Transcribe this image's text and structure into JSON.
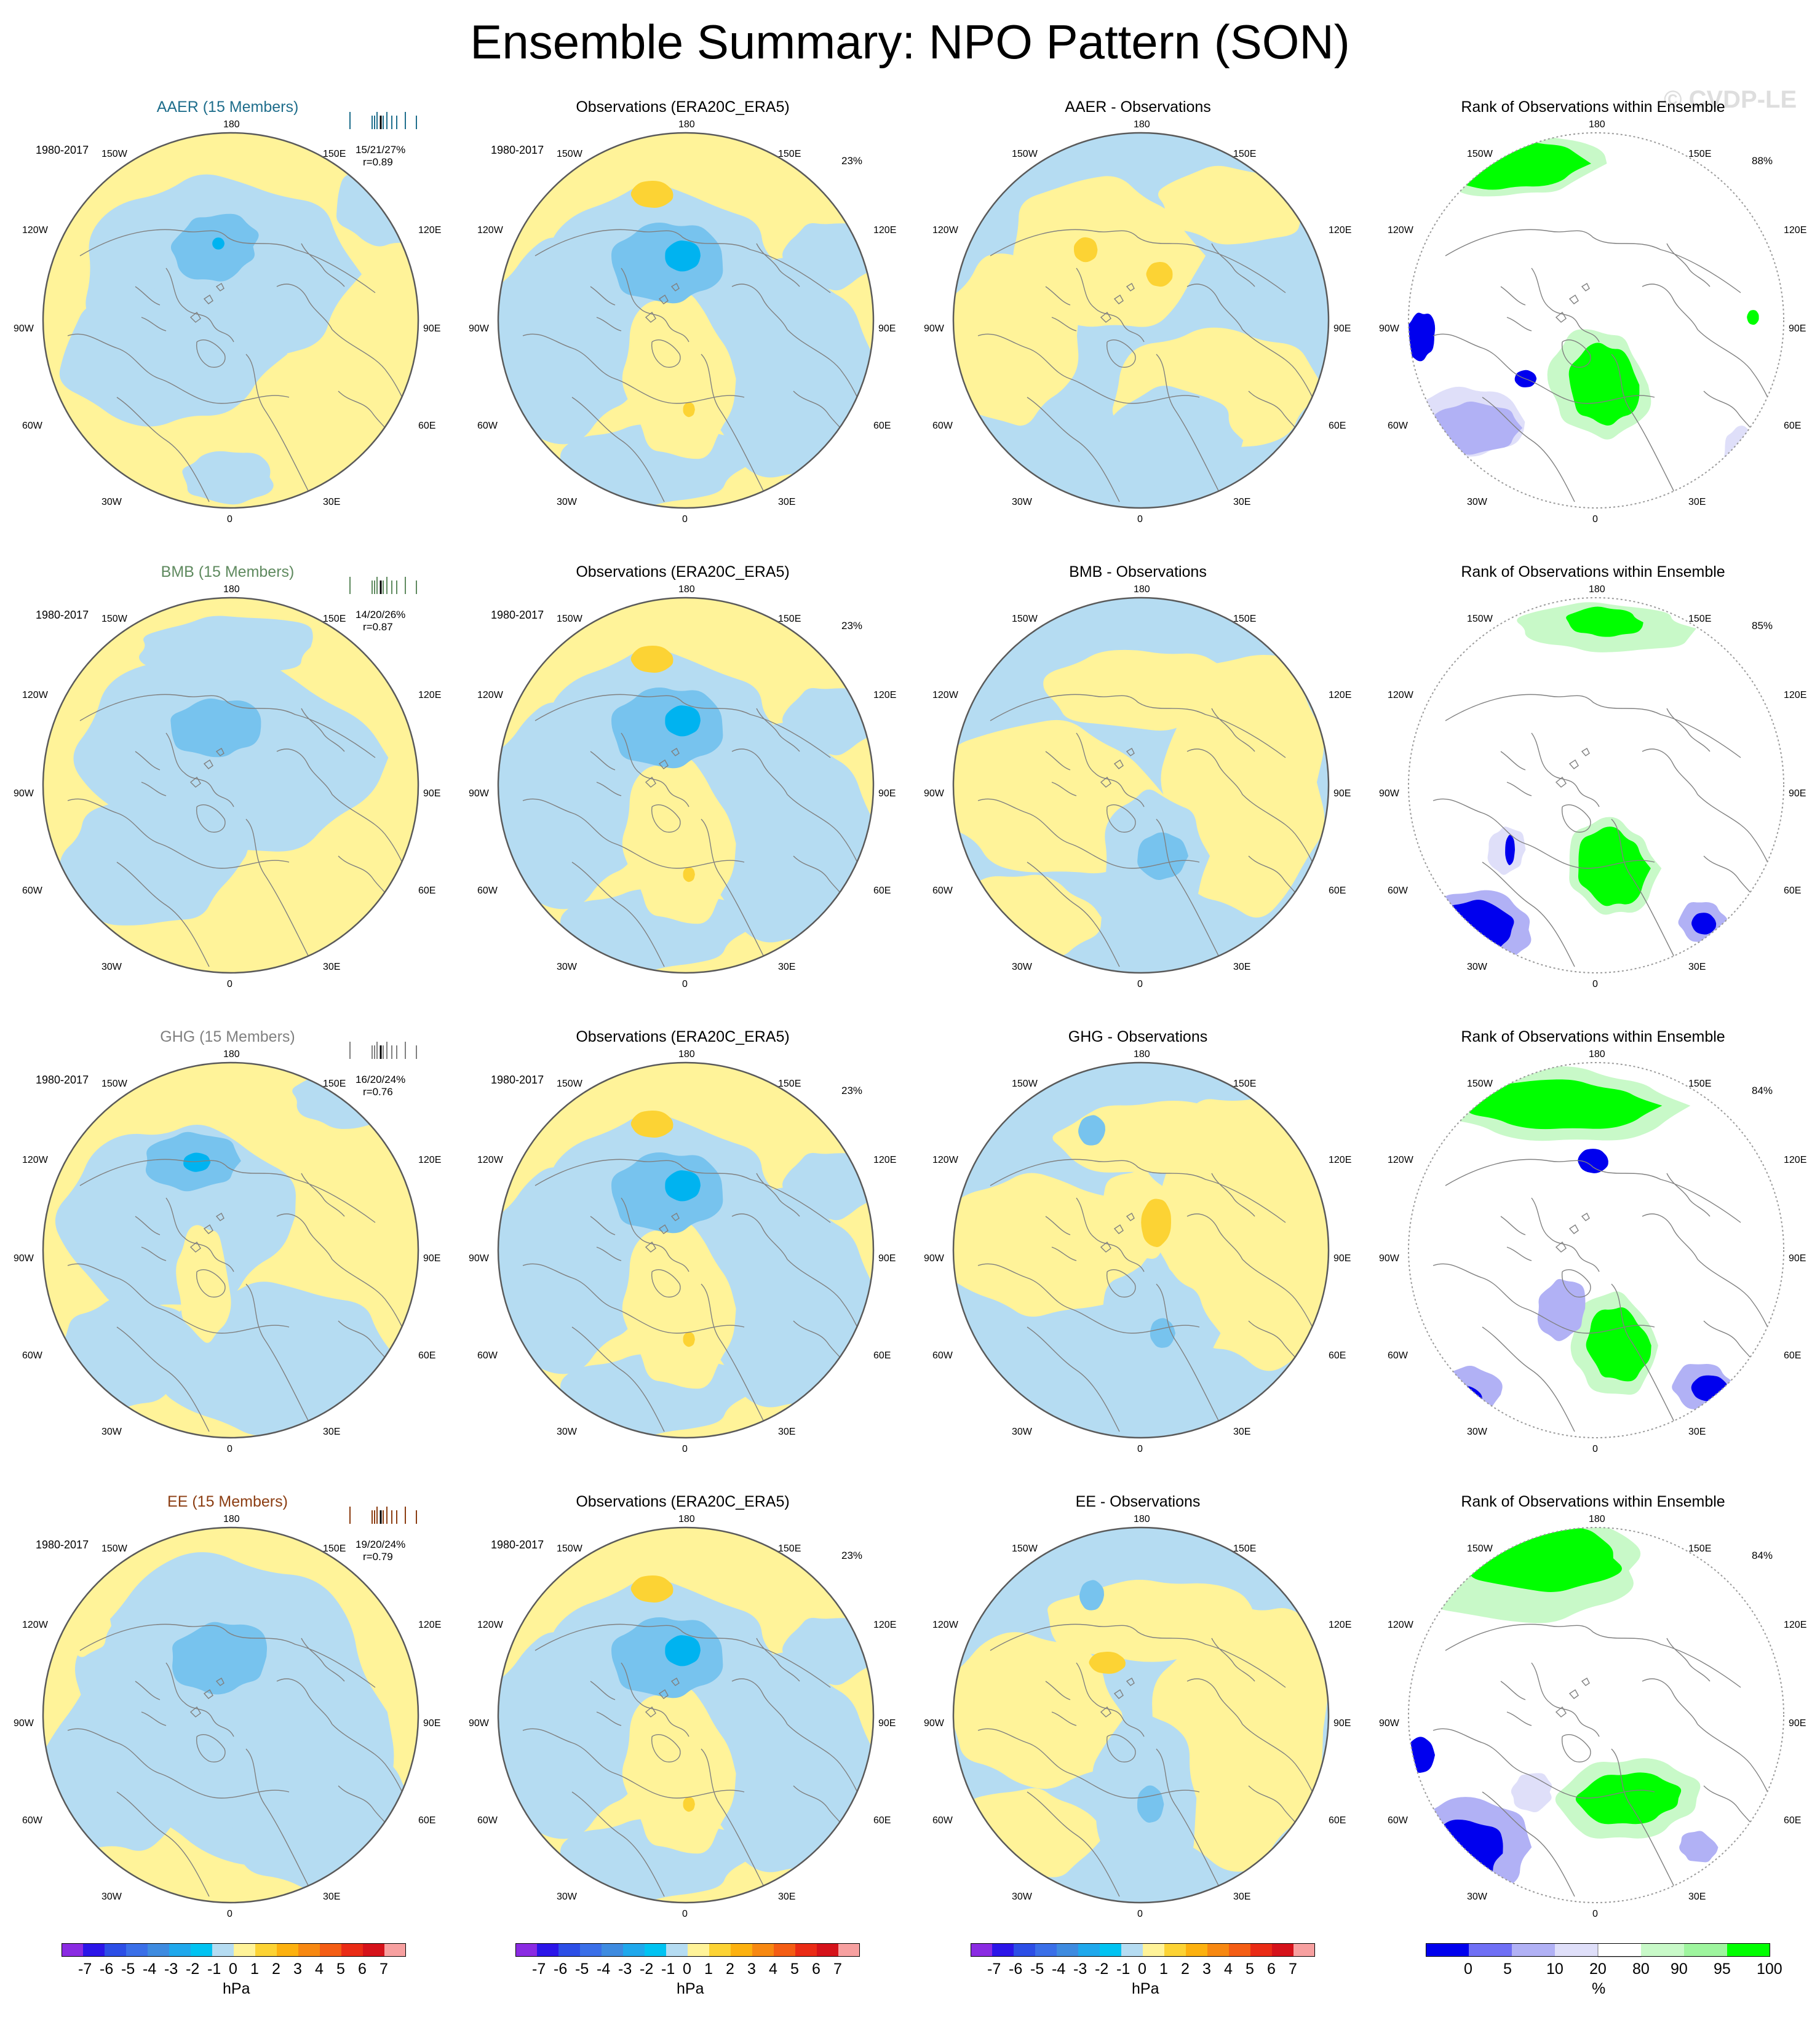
{
  "title": "Ensemble Summary: NPO Pattern (SON)",
  "watermark": "© CVDP-LE",
  "colors": {
    "yellow": "#fff399",
    "lightblue": "#b5dcf2",
    "midblue": "#77c3ee",
    "blue": "#00b3f0",
    "orange": "#fcd334",
    "green": "#00ff00",
    "lightgreen": "#c8f9c8",
    "lavender": "#dfdff9",
    "periwinkle": "#b1b1f5",
    "darkblue": "#0000ee",
    "coast": "#808080"
  },
  "longitude_labels": {
    "top": "180",
    "bottom": "0",
    "l150": "150W",
    "r150": "150E",
    "l120": "120W",
    "r120": "120E",
    "l90": "90W",
    "r90": "90E",
    "l60": "60W",
    "r60": "60E",
    "l30": "30W",
    "r30": "30E"
  },
  "rows": [
    {
      "name": "AAER",
      "color": "#1f6e8c",
      "panels": [
        {
          "title": "AAER (15 Members)",
          "years": "1980-2017",
          "stats1": "15/21/27%",
          "stats2": "r=0.89"
        },
        {
          "title": "Observations (ERA20C_ERA5)",
          "years": "1980-2017",
          "percent": "23%"
        },
        {
          "title": "AAER - Observations"
        },
        {
          "title": "Rank of Observations within Ensemble",
          "percent": "88%"
        }
      ]
    },
    {
      "name": "BMB",
      "color": "#5f8a5f",
      "panels": [
        {
          "title": "BMB (15 Members)",
          "years": "1980-2017",
          "stats1": "14/20/26%",
          "stats2": "r=0.87"
        },
        {
          "title": "Observations (ERA20C_ERA5)",
          "years": "1980-2017",
          "percent": "23%"
        },
        {
          "title": "BMB - Observations"
        },
        {
          "title": "Rank of Observations within Ensemble",
          "percent": "85%"
        }
      ]
    },
    {
      "name": "GHG",
      "color": "#808080",
      "panels": [
        {
          "title": "GHG (15 Members)",
          "years": "1980-2017",
          "stats1": "16/20/24%",
          "stats2": "r=0.76"
        },
        {
          "title": "Observations (ERA20C_ERA5)",
          "years": "1980-2017",
          "percent": "23%"
        },
        {
          "title": "GHG - Observations"
        },
        {
          "title": "Rank of Observations within Ensemble",
          "percent": "84%"
        }
      ]
    },
    {
      "name": "EE",
      "color": "#8b3d12",
      "panels": [
        {
          "title": "EE (15 Members)",
          "years": "1980-2017",
          "stats1": "19/20/24%",
          "stats2": "r=0.79"
        },
        {
          "title": "Observations (ERA20C_ERA5)",
          "years": "1980-2017",
          "percent": "23%"
        },
        {
          "title": "EE - Observations"
        },
        {
          "title": "Rank of Observations within Ensemble",
          "percent": "84%"
        }
      ]
    }
  ],
  "chart_data": {
    "type": "heatmap",
    "projection": "north polar stereographic",
    "variable": "NPO pattern sea level pressure anomaly",
    "pattern_colorbar": {
      "unit": "hPa",
      "tick_labels": [
        "-7",
        "-6",
        "-5",
        "-4",
        "-3",
        "-2",
        "-1",
        "0",
        "1",
        "2",
        "3",
        "4",
        "5",
        "6",
        "7"
      ],
      "colors": [
        "#8a2be2",
        "#2b15e8",
        "#2c4ee6",
        "#3a6fe8",
        "#3e8be0",
        "#1fa8ec",
        "#00c3f2",
        "#b5dcf2",
        "#fff399",
        "#fcd334",
        "#fcb10f",
        "#f78811",
        "#f45d14",
        "#ea2b15",
        "#d5121a",
        "#f7a0a0"
      ]
    },
    "rank_colorbar": {
      "unit": "%",
      "tick_labels": [
        "0",
        "5",
        "10",
        "20",
        "80",
        "90",
        "95",
        "100"
      ],
      "colors": [
        "#0000ee",
        "#6f6ff5",
        "#b1b1f5",
        "#dfdff9",
        "#ffffff",
        "#c8f9c8",
        "#9ef59e",
        "#00ff00"
      ]
    }
  }
}
